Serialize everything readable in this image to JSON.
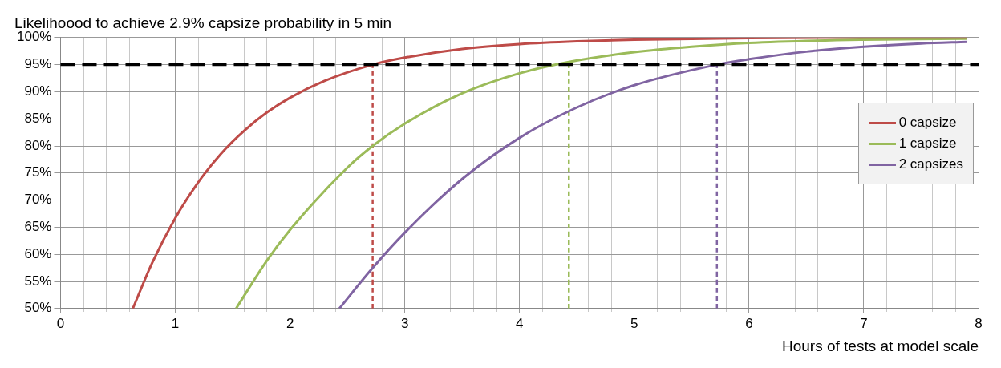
{
  "chart_data": {
    "type": "line",
    "title": "Likelihoood to achieve 2.9% capsize probability in 5 min",
    "xlabel": "Hours of tests at model scale",
    "xlim": [
      0,
      8
    ],
    "xticks": [
      0,
      {
        "value": 0.2,
        "label": null
      },
      {
        "value": 0.4,
        "label": null
      },
      {
        "value": 0.6,
        "label": null
      },
      {
        "value": 0.8,
        "label": null
      },
      1,
      {
        "value": 1.2,
        "label": null
      },
      {
        "value": 1.4,
        "label": null
      },
      {
        "value": 1.6,
        "label": null
      },
      {
        "value": 1.8,
        "label": null
      },
      2,
      {
        "value": 2.2,
        "label": null
      },
      {
        "value": 2.4,
        "label": null
      },
      {
        "value": 2.6,
        "label": null
      },
      {
        "value": 2.8,
        "label": null
      },
      3,
      {
        "value": 3.2,
        "label": null
      },
      {
        "value": 3.4,
        "label": null
      },
      {
        "value": 3.6,
        "label": null
      },
      {
        "value": 3.8,
        "label": null
      },
      4,
      {
        "value": 4.2,
        "label": null
      },
      {
        "value": 4.4,
        "label": null
      },
      {
        "value": 4.6,
        "label": null
      },
      {
        "value": 4.8,
        "label": null
      },
      5,
      {
        "value": 5.2,
        "label": null
      },
      {
        "value": 5.4,
        "label": null
      },
      {
        "value": 5.6,
        "label": null
      },
      {
        "value": 5.8,
        "label": null
      },
      6,
      {
        "value": 6.2,
        "label": null
      },
      {
        "value": 6.4,
        "label": null
      },
      {
        "value": 6.6,
        "label": null
      },
      {
        "value": 6.8,
        "label": null
      },
      7,
      {
        "value": 7.2,
        "label": null
      },
      {
        "value": 7.4,
        "label": null
      },
      {
        "value": 7.6,
        "label": null
      },
      {
        "value": 7.8,
        "label": null
      },
      8
    ],
    "ylim": [
      50,
      100
    ],
    "yticks": [
      {
        "value": 50,
        "label": "50%"
      },
      {
        "value": 55,
        "label": "55%"
      },
      {
        "value": 60,
        "label": "60%"
      },
      {
        "value": 65,
        "label": "65%"
      },
      {
        "value": 70,
        "label": "70%"
      },
      {
        "value": 75,
        "label": "75%"
      },
      {
        "value": 80,
        "label": "80%"
      },
      {
        "value": 85,
        "label": "85%"
      },
      {
        "value": 90,
        "label": "90%"
      },
      {
        "value": 95,
        "label": "95%"
      },
      {
        "value": 100,
        "label": "100%"
      }
    ],
    "grid": true,
    "legend": "right",
    "marker": "none",
    "line_style": "solid",
    "ref_lines": [
      {
        "axis": "y",
        "value": 95,
        "color": "#000000",
        "line_style": "dashed"
      }
    ],
    "series": [
      {
        "name": "0 capsize",
        "color": "#be4b48",
        "x": [
          0.63,
          0.8,
          1.0,
          1.2,
          1.4,
          1.6,
          1.8,
          2.0,
          2.3,
          2.72,
          3.0,
          3.5,
          4.0,
          4.5,
          5.0,
          6.0,
          7.0,
          7.9
        ],
        "values": [
          50,
          58.5,
          66.7,
          73.3,
          78.6,
          82.8,
          86.2,
          88.9,
          92,
          95,
          96.3,
          97.9,
          98.8,
          99.3,
          99.6,
          99.9,
          100,
          100
        ]
      },
      {
        "name": "1 capsize",
        "color": "#9bbb59",
        "x": [
          1.53,
          1.8,
          2.0,
          2.5,
          2.72,
          3.0,
          3.5,
          4.0,
          4.43,
          5.0,
          5.5,
          6.0,
          7.0,
          7.9
        ],
        "values": [
          50,
          58.9,
          64.5,
          76,
          80,
          84.1,
          89.7,
          93.4,
          95.5,
          97.3,
          98.3,
          99,
          99.6,
          99.8
        ]
      },
      {
        "name": "2 capsizes",
        "color": "#8064a2",
        "x": [
          2.43,
          2.7,
          3.0,
          3.5,
          4.0,
          4.5,
          5.0,
          5.72,
          6.0,
          6.5,
          7.0,
          7.5,
          7.9
        ],
        "values": [
          50,
          57,
          64,
          73.9,
          81.5,
          87.1,
          91.2,
          95,
          96,
          97.4,
          98.3,
          98.9,
          99.2
        ]
      },
      {
        "color": "#be4b48",
        "line_style": "dashed",
        "x": [
          2.72,
          2.72
        ],
        "values": [
          50,
          95
        ]
      },
      {
        "color": "#9bbb59",
        "line_style": "dashed",
        "x": [
          4.43,
          4.43
        ],
        "values": [
          50,
          95
        ]
      },
      {
        "color": "#8064a2",
        "line_style": "dashed",
        "x": [
          5.72,
          5.72
        ],
        "values": [
          50,
          95
        ]
      }
    ]
  }
}
